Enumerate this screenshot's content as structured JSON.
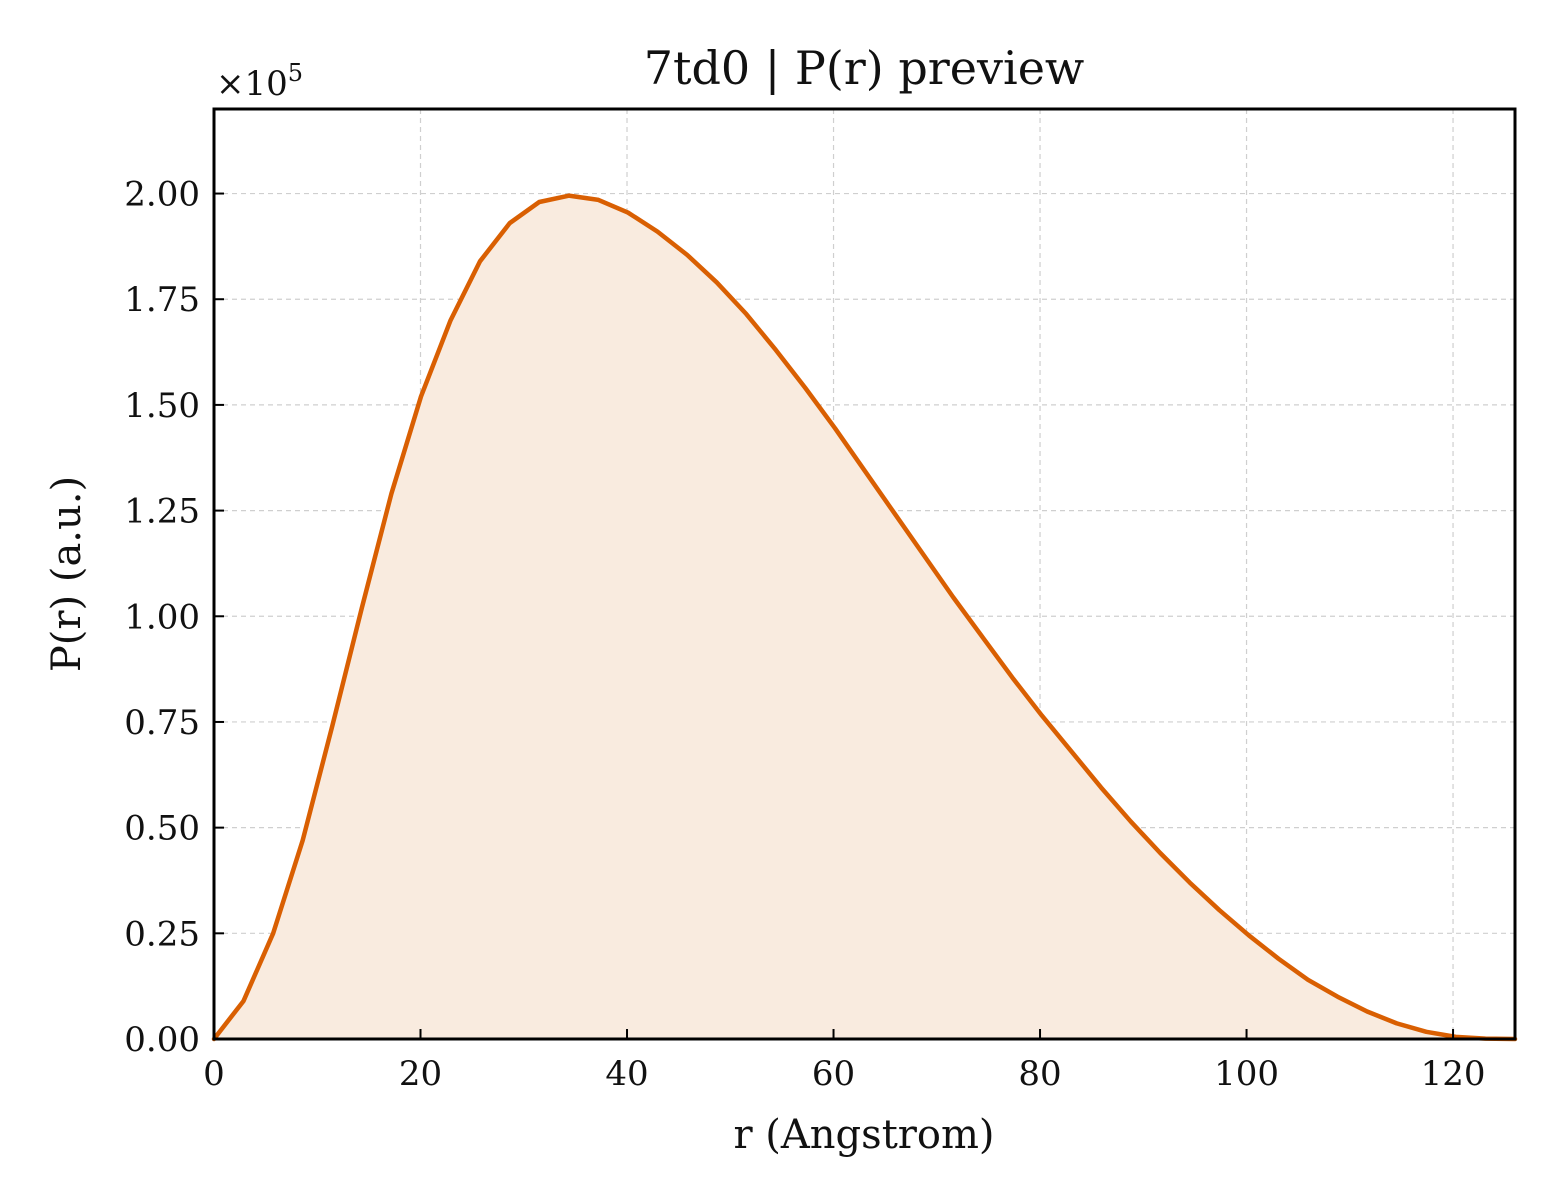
{
  "chart_data": {
    "type": "area",
    "title": "7td0 | P(r) preview",
    "xlabel": "r (Angstrom)",
    "ylabel": "P(r) (a.u.)",
    "y_scale_label": "×10",
    "y_scale_exponent": "5",
    "xlim": [
      0,
      126
    ],
    "ylim": [
      0,
      2.2
    ],
    "x_ticks": [
      0,
      20,
      40,
      60,
      80,
      100,
      120
    ],
    "x_tick_labels": [
      "0",
      "20",
      "40",
      "60",
      "80",
      "100",
      "120"
    ],
    "y_ticks": [
      0,
      0.25,
      0.5,
      0.75,
      1.0,
      1.25,
      1.5,
      1.75,
      2.0
    ],
    "y_tick_labels": [
      "0.00",
      "0.25",
      "0.50",
      "0.75",
      "1.00",
      "1.25",
      "1.50",
      "1.75",
      "2.00"
    ],
    "grid": true,
    "line_color": "#d95f02",
    "fill_color": "#f9ebdf",
    "series": [
      {
        "x": [
          0,
          2.86,
          5.73,
          8.59,
          11.45,
          14.32,
          17.18,
          20.05,
          22.91,
          25.77,
          28.64,
          31.5,
          34.36,
          37.23,
          40.09,
          42.95,
          45.82,
          48.68,
          51.55,
          54.41,
          57.27,
          60.14,
          63.0,
          65.86,
          68.73,
          71.59,
          74.45,
          77.32,
          80.18,
          83.05,
          85.91,
          88.77,
          91.64,
          94.5,
          97.36,
          100.23,
          103.09,
          105.95,
          108.82,
          111.68,
          114.55,
          117.41,
          120.27,
          123.14,
          126.0
        ],
        "y": [
          0.0,
          0.09,
          0.25,
          0.47,
          0.74,
          1.02,
          1.29,
          1.52,
          1.7,
          1.84,
          1.93,
          1.98,
          1.995,
          1.985,
          1.955,
          1.91,
          1.855,
          1.79,
          1.715,
          1.63,
          1.54,
          1.445,
          1.345,
          1.245,
          1.145,
          1.045,
          0.95,
          0.855,
          0.765,
          0.68,
          0.595,
          0.515,
          0.44,
          0.37,
          0.305,
          0.245,
          0.19,
          0.14,
          0.1,
          0.065,
          0.037,
          0.017,
          0.005,
          0.001,
          0.0
        ]
      }
    ]
  }
}
